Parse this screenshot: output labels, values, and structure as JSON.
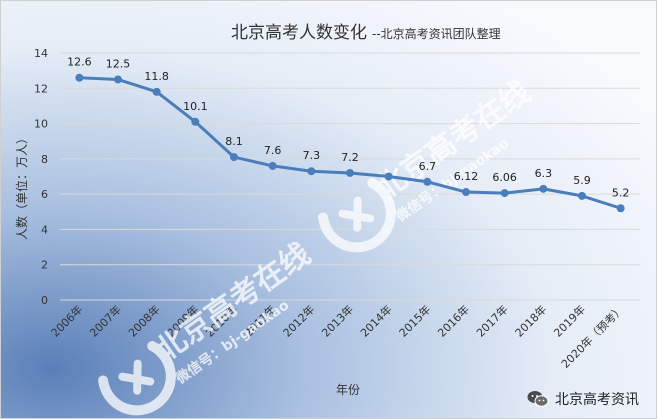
{
  "chart_data": {
    "type": "line",
    "title": "北京高考人数变化",
    "subtitle": "--北京高考资讯团队整理",
    "xlabel": "年份",
    "ylabel": "人数（单位：万人）",
    "ylim": [
      0,
      14
    ],
    "yticks": [
      0,
      2,
      4,
      6,
      8,
      10,
      12,
      14
    ],
    "categories": [
      "2006年",
      "2007年",
      "2008年",
      "2009年",
      "2010年",
      "2011年",
      "2012年",
      "2013年",
      "2014年",
      "2015年",
      "2016年",
      "2017年",
      "2018年",
      "2019年",
      "2020年（预考）"
    ],
    "values": [
      12.6,
      12.5,
      11.8,
      10.1,
      8.1,
      7.6,
      7.3,
      7.2,
      7.0,
      6.7,
      6.12,
      6.06,
      6.3,
      5.9,
      5.2
    ],
    "data_labels": [
      "12.6",
      "12.5",
      "11.8",
      "10.1",
      "8.1",
      "7.6",
      "7.3",
      "7.2",
      "",
      "6.7",
      "6.12",
      "6.06",
      "6.3",
      "5.9",
      "5.2"
    ],
    "grid": true,
    "line_color": "#4a7ebb"
  },
  "watermark": {
    "brand": "北京高考在线",
    "wechat": "微信号：bj-gaokao"
  },
  "footer": {
    "brand": "北京高考资讯"
  },
  "colors": {
    "bg_light": "#f4f7fc",
    "bg_dark": "#6f93c6",
    "grid": "#d9d9d9",
    "axis_text": "#333333"
  }
}
